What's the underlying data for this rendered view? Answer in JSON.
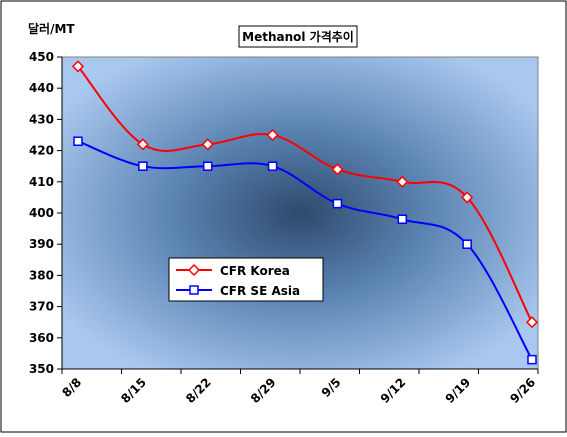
{
  "chart_data": {
    "type": "line",
    "title": "Methanol 가격추이",
    "ylabel": "달러/MT",
    "xlabel": "",
    "categories": [
      "8/8",
      "8/15",
      "8/22",
      "8/29",
      "9/5",
      "9/12",
      "9/19",
      "9/26"
    ],
    "ylim": [
      350,
      450
    ],
    "yticks": [
      350,
      360,
      370,
      380,
      390,
      400,
      410,
      420,
      430,
      440,
      450
    ],
    "grid": false,
    "legend_position": "lower-left",
    "series": [
      {
        "name": "CFR Korea",
        "color": "#ff0000",
        "marker": "diamond",
        "values": [
          447,
          422,
          422,
          425,
          414,
          410,
          405,
          365
        ]
      },
      {
        "name": "CFR SE Asia",
        "color": "#0000ff",
        "marker": "square",
        "values": [
          423,
          415,
          415,
          415,
          403,
          398,
          390,
          353
        ]
      }
    ]
  }
}
